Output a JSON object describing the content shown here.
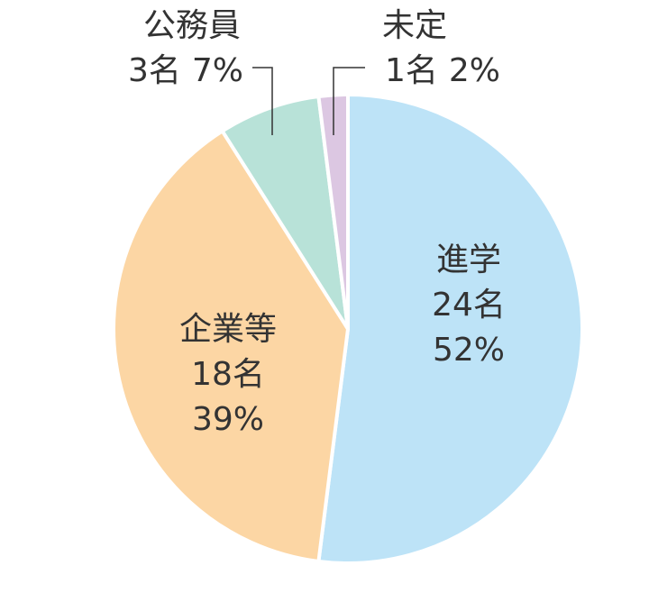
{
  "chart_data": {
    "type": "pie",
    "categories": [
      "進学",
      "企業等",
      "公務員",
      "未定"
    ],
    "values": [
      52,
      39,
      7,
      2
    ],
    "value_labels": [
      "52%",
      "39%",
      "7%",
      "2%"
    ],
    "counts": [
      24,
      18,
      3,
      1
    ],
    "count_labels": [
      "24名",
      "18名",
      "3名",
      "1名"
    ],
    "colors": [
      "#bde3f7",
      "#fcd6a4",
      "#b8e2d8",
      "#dcc7e2"
    ]
  }
}
